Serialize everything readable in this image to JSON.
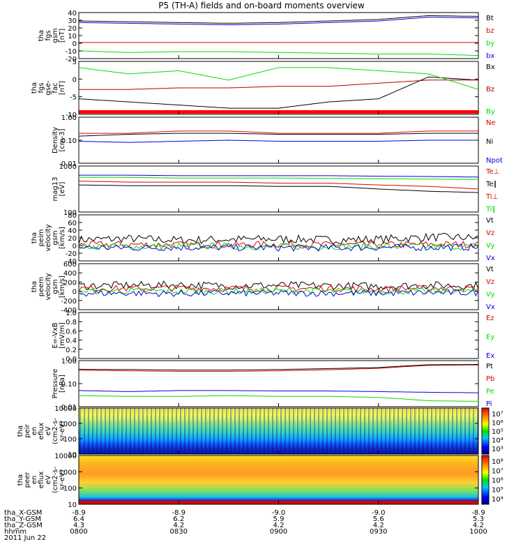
{
  "title": "P5 (TH-A) fields and on-board moments overview",
  "colors": {
    "black": "#000000",
    "red": "#dd0000",
    "darkred": "#b00000",
    "green": "#00dd00",
    "blue": "#0000dd",
    "bar": "#ff0000"
  },
  "panels": [
    {
      "id": "fgs-gsm",
      "ylabel": [
        "tha",
        "fgs",
        "gsm",
        "[nT]"
      ],
      "scale": "linear",
      "ylim": [
        -20,
        40
      ],
      "ticks": [
        "40",
        "30",
        "20",
        "10",
        "0",
        "-10",
        "-20"
      ],
      "legend": [
        {
          "label": "Bt",
          "color": "#000000"
        },
        {
          "label": "bz",
          "color": "#dd0000"
        },
        {
          "label": "by",
          "color": "#00dd00"
        },
        {
          "label": "bx",
          "color": "#0000dd"
        }
      ]
    },
    {
      "id": "fgs-gse-fac",
      "ylabel": [
        "tha",
        "fgs",
        "gse-",
        "fac",
        "[nT]"
      ],
      "scale": "linear",
      "ylim": [
        -12,
        5
      ],
      "ticks": [
        "5",
        "0",
        "-5",
        "-10"
      ],
      "legend": [
        {
          "label": "Bx",
          "color": "#000000"
        },
        {
          "label": "Bz",
          "color": "#b00000"
        },
        {
          "label": "By",
          "color": "#00dd00"
        }
      ]
    },
    {
      "id": "density",
      "ylabel": [
        "Density",
        "[cm-3]"
      ],
      "scale": "log",
      "ylim": [
        0.01,
        1.0
      ],
      "ticks": [
        "1.00",
        "0.10",
        "0.01"
      ],
      "legend": [
        {
          "label": "Ne",
          "color": "#dd0000"
        },
        {
          "label": "Ni",
          "color": "#000000"
        },
        {
          "label": "Npot",
          "color": "#0000dd"
        }
      ]
    },
    {
      "id": "temperature",
      "ylabel": [
        "mag13",
        "[eV]"
      ],
      "scale": "log",
      "ylim": [
        100,
        10000
      ],
      "ticks": [
        "1000",
        "100"
      ],
      "legend": [
        {
          "label": "Te⊥",
          "color": "#dd0000"
        },
        {
          "label": "Te∥",
          "color": "#000000"
        },
        {
          "label": "Ti⊥",
          "color": "#dd0000"
        },
        {
          "label": "Ti∥",
          "color": "#00dd00"
        }
      ]
    },
    {
      "id": "peim-velocity",
      "ylabel": [
        "tha",
        "peim",
        "velocity",
        "gsm",
        "[km/s]"
      ],
      "scale": "linear",
      "ylim": [
        -40,
        80
      ],
      "ticks": [
        "80",
        "60",
        "40",
        "20",
        "0",
        "-20",
        "-40"
      ],
      "legend": [
        {
          "label": "Vt",
          "color": "#000000"
        },
        {
          "label": "Vz",
          "color": "#dd0000"
        },
        {
          "label": "Vy",
          "color": "#00dd00"
        },
        {
          "label": "Vx",
          "color": "#0000dd"
        }
      ]
    },
    {
      "id": "peem-velocity",
      "ylabel": [
        "tha",
        "peem",
        "velocity",
        "gsm",
        "[km/s]"
      ],
      "scale": "linear",
      "ylim": [
        -400,
        600
      ],
      "ticks": [
        "600",
        "400",
        "200",
        "0",
        "-200",
        "-400"
      ],
      "legend": [
        {
          "label": "Vt",
          "color": "#000000"
        },
        {
          "label": "Vz",
          "color": "#dd0000"
        },
        {
          "label": "Vy",
          "color": "#00dd00"
        },
        {
          "label": "Vx",
          "color": "#0000dd"
        }
      ]
    },
    {
      "id": "efield",
      "ylabel": [
        "E=-VxB",
        "[mV/m]"
      ],
      "scale": "linear",
      "ylim": [
        0.0,
        1.0
      ],
      "ticks": [
        "1.0",
        "0.8",
        "0.6",
        "0.4",
        "0.2",
        "0.0"
      ],
      "legend": [
        {
          "label": "Ez",
          "color": "#dd0000"
        },
        {
          "label": "Ey",
          "color": "#00dd00"
        },
        {
          "label": "Ex",
          "color": "#0000dd"
        }
      ]
    },
    {
      "id": "pressure",
      "ylabel": [
        "Pressure",
        "[nPa]"
      ],
      "scale": "log",
      "ylim": [
        0.01,
        1.0
      ],
      "ticks": [
        "1.00",
        "0.10",
        "0.01"
      ],
      "legend": [
        {
          "label": "Pt",
          "color": "#000000"
        },
        {
          "label": "Pb",
          "color": "#dd0000"
        },
        {
          "label": "Pe",
          "color": "#00dd00"
        },
        {
          "label": "Pi",
          "color": "#0000dd"
        }
      ]
    },
    {
      "id": "peir-spectrogram",
      "ylabel": [
        "tha",
        "peir",
        "en",
        "eflux",
        "eV",
        "(cm2-s-",
        "sr-eV)"
      ],
      "scale": "log",
      "ylim": [
        10,
        20000
      ],
      "ticks": [
        "10000",
        "1000",
        "100",
        "10"
      ],
      "colorbar_ticks": [
        "10⁷",
        "10⁶",
        "10⁵",
        "10⁴",
        "10³"
      ]
    },
    {
      "id": "peer-spectrogram",
      "ylabel": [
        "tha",
        "peer",
        "en",
        "eflux",
        "eV",
        "(cm2-s-",
        "sr-eV)"
      ],
      "scale": "log",
      "ylim": [
        10,
        20000
      ],
      "ticks": [
        "10000",
        "1000",
        "100",
        "10"
      ],
      "colorbar_ticks": [
        "10⁸",
        "10⁷",
        "10⁶",
        "10⁵",
        "10⁴"
      ]
    }
  ],
  "footer": {
    "row_labels": [
      "tha_X-GSM",
      "tha_Y-GSM",
      "tha_Z-GSM",
      "hhmm",
      "2011 Jun 22"
    ],
    "columns": [
      {
        "x": "-8.9",
        "y": "6.4",
        "z": "4.3",
        "t": "0800"
      },
      {
        "x": "-8.9",
        "y": "6.2",
        "z": "4.2",
        "t": "0830"
      },
      {
        "x": "-9.0",
        "y": "5.9",
        "z": "4.2",
        "t": "0900"
      },
      {
        "x": "-9.0",
        "y": "5.6",
        "z": "4.2",
        "t": "0930"
      },
      {
        "x": "-8.9",
        "y": "5.3",
        "z": "4.2",
        "t": "1000"
      }
    ]
  },
  "chart_data": {
    "type": "line",
    "title": "P5 (TH-A) fields and on-board moments overview",
    "xlabel": "hhmm",
    "x_ticks": [
      "0800",
      "0830",
      "0900",
      "0930",
      "1000"
    ],
    "x_hours": [
      8.0,
      8.25,
      8.5,
      8.75,
      9.0,
      9.25,
      9.5,
      9.75,
      10.0
    ],
    "series": [
      {
        "panel": "fgs-gsm",
        "name": "Bt",
        "color": "#000000",
        "values": [
          29,
          28,
          27,
          26,
          27,
          29,
          31,
          36,
          35
        ]
      },
      {
        "panel": "fgs-gsm",
        "name": "bx",
        "color": "#0000dd",
        "values": [
          27,
          26,
          25,
          24,
          25,
          27,
          29,
          34,
          33
        ]
      },
      {
        "panel": "fgs-gsm",
        "name": "bz",
        "color": "#dd0000",
        "values": [
          1,
          1,
          1,
          1,
          1,
          1,
          1,
          1,
          1
        ]
      },
      {
        "panel": "fgs-gsm",
        "name": "by",
        "color": "#00dd00",
        "values": [
          -10,
          -12,
          -11,
          -11,
          -12,
          -13,
          -14,
          -14,
          -16
        ]
      },
      {
        "panel": "fgs-gse-fac",
        "name": "Bx",
        "color": "#000000",
        "values": [
          -7,
          -8,
          -9,
          -10,
          -10,
          -8,
          -7,
          0,
          -1
        ]
      },
      {
        "panel": "fgs-gse-fac",
        "name": "Bz",
        "color": "#b00000",
        "values": [
          -4,
          -4,
          -3.5,
          -3.5,
          -3,
          -3,
          -2,
          -1,
          -1
        ]
      },
      {
        "panel": "fgs-gse-fac",
        "name": "By",
        "color": "#00dd00",
        "values": [
          3,
          1,
          2,
          -1,
          3,
          3,
          2,
          1,
          -4
        ]
      },
      {
        "panel": "density",
        "name": "Ne",
        "color": "#dd0000",
        "values": [
          0.2,
          0.2,
          0.25,
          0.25,
          0.2,
          0.2,
          0.2,
          0.25,
          0.25
        ]
      },
      {
        "panel": "density",
        "name": "Ni",
        "color": "#000000",
        "values": [
          0.15,
          0.18,
          0.2,
          0.2,
          0.18,
          0.18,
          0.18,
          0.2,
          0.2
        ]
      },
      {
        "panel": "density",
        "name": "Npot",
        "color": "#0000dd",
        "values": [
          0.09,
          0.08,
          0.09,
          0.1,
          0.09,
          0.09,
          0.09,
          0.1,
          0.1
        ]
      },
      {
        "panel": "temperature",
        "name": "Ti∥",
        "color": "#0000dd",
        "values": [
          4000,
          4000,
          3800,
          3800,
          3800,
          3800,
          3600,
          3500,
          3300
        ]
      },
      {
        "panel": "temperature",
        "name": "Ti⊥",
        "color": "#00dd00",
        "values": [
          3200,
          3200,
          3000,
          3000,
          3000,
          2900,
          2800,
          2700,
          2600
        ]
      },
      {
        "panel": "temperature",
        "name": "Te⊥",
        "color": "#dd0000",
        "values": [
          2200,
          2000,
          2000,
          2000,
          1800,
          1800,
          1500,
          1300,
          1000
        ]
      },
      {
        "panel": "temperature",
        "name": "Te∥",
        "color": "#000000",
        "values": [
          1500,
          1400,
          1400,
          1400,
          1300,
          1300,
          1000,
          800,
          700
        ]
      },
      {
        "panel": "peim-velocity",
        "name": "Vt",
        "color": "#000000",
        "values": [
          15,
          18,
          14,
          16,
          17,
          15,
          16,
          22,
          20
        ]
      },
      {
        "panel": "peim-velocity",
        "name": "Vz",
        "color": "#dd0000",
        "values": [
          2,
          3,
          2,
          2,
          3,
          2,
          2,
          3,
          3
        ]
      },
      {
        "panel": "peim-velocity",
        "name": "Vy",
        "color": "#00dd00",
        "values": [
          -2,
          -3,
          -2,
          -2,
          -3,
          -2,
          -2,
          -3,
          -2
        ]
      },
      {
        "panel": "peim-velocity",
        "name": "Vx",
        "color": "#0000dd",
        "values": [
          -5,
          -6,
          -5,
          -5,
          -6,
          -6,
          -5,
          -5,
          -4
        ]
      },
      {
        "panel": "peem-velocity",
        "name": "Vt",
        "color": "#000000",
        "values": [
          120,
          130,
          140,
          120,
          130,
          120,
          110,
          130,
          120
        ]
      },
      {
        "panel": "peem-velocity",
        "name": "Vz",
        "color": "#dd0000",
        "values": [
          60,
          60,
          70,
          60,
          60,
          60,
          50,
          70,
          60
        ]
      },
      {
        "panel": "peem-velocity",
        "name": "Vy",
        "color": "#00dd00",
        "values": [
          0,
          10,
          0,
          0,
          10,
          0,
          0,
          0,
          0
        ]
      },
      {
        "panel": "peem-velocity",
        "name": "Vx",
        "color": "#0000dd",
        "values": [
          -40,
          -40,
          -50,
          -40,
          -40,
          -40,
          -40,
          -30,
          -30
        ]
      },
      {
        "panel": "pressure",
        "name": "Pb",
        "color": "#dd0000",
        "values": [
          0.38,
          0.36,
          0.34,
          0.34,
          0.36,
          0.4,
          0.46,
          0.62,
          0.65
        ]
      },
      {
        "panel": "pressure",
        "name": "Pt",
        "color": "#000000",
        "values": [
          0.42,
          0.41,
          0.39,
          0.39,
          0.41,
          0.45,
          0.5,
          0.66,
          0.68
        ]
      },
      {
        "panel": "pressure",
        "name": "Pi",
        "color": "#0000dd",
        "values": [
          0.05,
          0.045,
          0.05,
          0.05,
          0.048,
          0.048,
          0.045,
          0.042,
          0.04
        ]
      },
      {
        "panel": "pressure",
        "name": "Pe",
        "color": "#00dd00",
        "values": [
          0.03,
          0.028,
          0.028,
          0.03,
          0.028,
          0.028,
          0.025,
          0.018,
          0.017
        ]
      }
    ]
  }
}
